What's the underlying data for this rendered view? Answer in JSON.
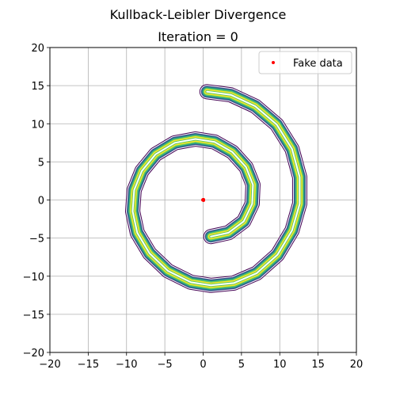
{
  "chart_data": {
    "type": "scatter",
    "title": "Kullback-Leibler Divergence",
    "subtitle": "Iteration = 0",
    "xlabel": "",
    "ylabel": "",
    "xlim": [
      -20,
      20
    ],
    "ylim": [
      -20,
      20
    ],
    "xticks": [
      -20,
      -15,
      -10,
      -5,
      0,
      5,
      10,
      15,
      20
    ],
    "yticks": [
      -20,
      -15,
      -10,
      -5,
      0,
      5,
      10,
      15,
      20
    ],
    "xtick_labels": [
      "−20",
      "−15",
      "−10",
      "−5",
      "0",
      "5",
      "10",
      "15",
      "20"
    ],
    "ytick_labels": [
      "−20",
      "−15",
      "−10",
      "−5",
      "0",
      "5",
      "10",
      "15",
      "20"
    ],
    "grid": true,
    "legend": {
      "placement": "top-right",
      "entries": [
        "Fake data"
      ]
    },
    "series": [
      {
        "name": "Fake data",
        "color": "#ff0000",
        "x": [
          0.0,
          0.0,
          0.05,
          -0.05,
          0.05
        ],
        "y": [
          0.0,
          0.05,
          -0.05,
          0.0,
          0.05
        ]
      }
    ],
    "density_contour": {
      "shape": "spiral",
      "colormap": "viridis",
      "colors": [
        "#440154",
        "#3b528b",
        "#21918c",
        "#5ec962",
        "#fde725"
      ],
      "centerline": [
        [
          1.0,
          -4.8
        ],
        [
          3.3,
          -4.3
        ],
        [
          5.3,
          -2.8
        ],
        [
          6.4,
          -0.5
        ],
        [
          6.5,
          2.0
        ],
        [
          5.6,
          4.3
        ],
        [
          3.8,
          6.3
        ],
        [
          1.5,
          7.6
        ],
        [
          -1.0,
          8.0
        ],
        [
          -3.7,
          7.5
        ],
        [
          -6.2,
          6.0
        ],
        [
          -8.0,
          3.8
        ],
        [
          -9.0,
          1.3
        ],
        [
          -9.2,
          -1.5
        ],
        [
          -8.6,
          -4.3
        ],
        [
          -7.0,
          -7.0
        ],
        [
          -4.6,
          -9.3
        ],
        [
          -1.6,
          -10.8
        ],
        [
          1.0,
          -11.2
        ],
        [
          4.0,
          -10.9
        ],
        [
          7.0,
          -9.6
        ],
        [
          9.7,
          -7.2
        ],
        [
          11.6,
          -4.0
        ],
        [
          12.6,
          -0.5
        ],
        [
          12.6,
          3.0
        ],
        [
          11.6,
          6.7
        ],
        [
          9.6,
          9.9
        ],
        [
          6.8,
          12.3
        ],
        [
          3.6,
          13.8
        ],
        [
          0.5,
          14.2
        ]
      ]
    }
  }
}
